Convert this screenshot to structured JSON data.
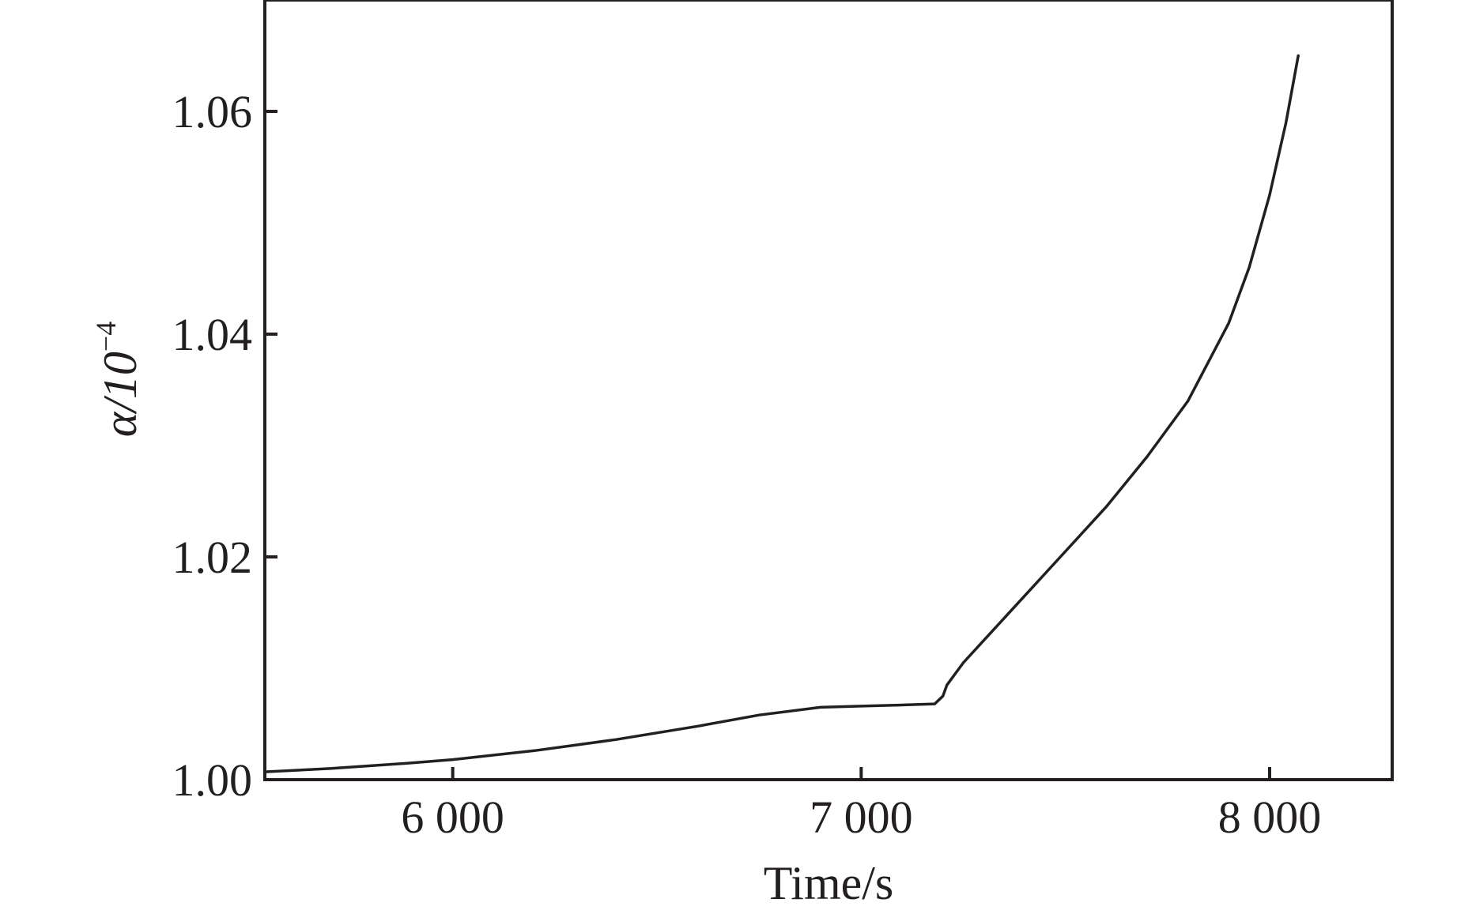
{
  "chart_data": {
    "type": "line",
    "xlabel": "Time/s",
    "ylabel_main": "α/10",
    "ylabel_exp": "−4",
    "xlim": [
      5540,
      8300
    ],
    "ylim": [
      1.0,
      1.07
    ],
    "x_ticks": [
      {
        "value": 6000,
        "label": "6 000"
      },
      {
        "value": 7000,
        "label": "7 000"
      },
      {
        "value": 8000,
        "label": "8 000"
      }
    ],
    "y_ticks": [
      {
        "value": 1.0,
        "label": "1.00"
      },
      {
        "value": 1.02,
        "label": "1.02"
      },
      {
        "value": 1.04,
        "label": "1.04"
      },
      {
        "value": 1.06,
        "label": "1.06"
      }
    ],
    "grid": false,
    "series": [
      {
        "color": "#231f20",
        "x": [
          5540,
          5700,
          5900,
          6000,
          6200,
          6400,
          6600,
          6750,
          6900,
          7000,
          7100,
          7180,
          7200,
          7210,
          7250,
          7300,
          7400,
          7500,
          7600,
          7700,
          7800,
          7900,
          7950,
          8000,
          8040,
          8070
        ],
        "y": [
          1.0007,
          1.001,
          1.0015,
          1.0018,
          1.0026,
          1.0036,
          1.0048,
          1.0058,
          1.0065,
          1.0066,
          1.0067,
          1.0068,
          1.0075,
          1.0085,
          1.0105,
          1.0125,
          1.0165,
          1.0205,
          1.0245,
          1.029,
          1.034,
          1.041,
          1.046,
          1.0525,
          1.059,
          1.065
        ]
      }
    ]
  }
}
